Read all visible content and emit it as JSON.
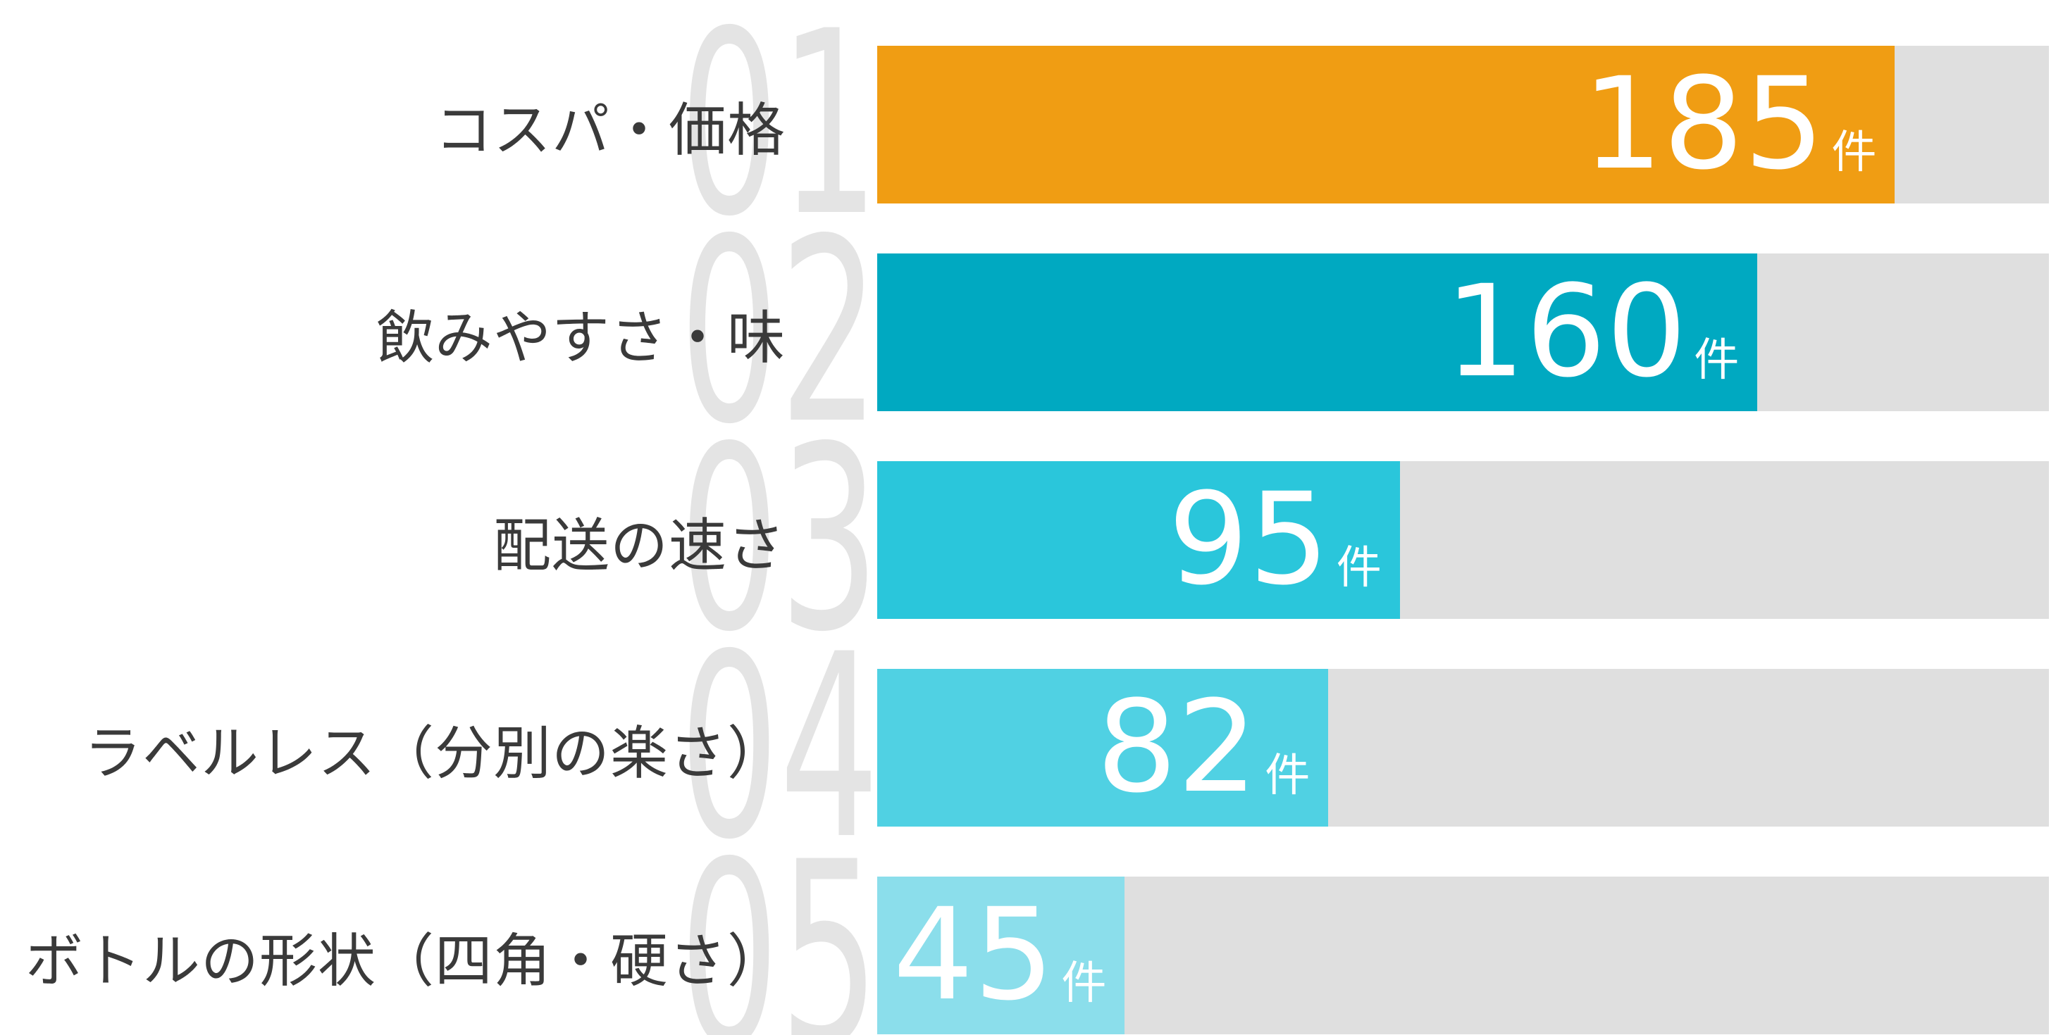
{
  "chart_data": {
    "type": "bar",
    "orientation": "horizontal",
    "title": "",
    "xlabel": "",
    "ylabel": "",
    "unit": "件",
    "xlim": [
      0,
      213
    ],
    "grid": false,
    "legend": "none",
    "categories": [
      "コスパ・価格",
      "飲みやすさ・味",
      "配送の速さ",
      "ラベルレス（分別の楽さ）",
      "ボトルの形状（四角・硬さ）"
    ],
    "values": [
      185,
      160,
      95,
      82,
      45
    ],
    "items": [
      {
        "rank": "01",
        "label": "コスパ・価格",
        "value": 185,
        "color": "#F09D13"
      },
      {
        "rank": "02",
        "label": "飲みやすさ・味",
        "value": 160,
        "color": "#00A9C1"
      },
      {
        "rank": "03",
        "label": "配送の速さ",
        "value": 95,
        "color": "#2AC6DB"
      },
      {
        "rank": "04",
        "label": "ラベルレス（分別の楽さ）",
        "value": 82,
        "color": "#50D1E3"
      },
      {
        "rank": "05",
        "label": "ボトルの形状（四角・硬さ）",
        "value": 45,
        "color": "#8BDEEB"
      }
    ],
    "colors": {
      "track": "#DFDFDF",
      "rank_watermark": "#E4E4E4",
      "category_label": "#3A3A3A",
      "value_text": "#FFFFFF",
      "background": "#FFFFFF"
    }
  }
}
